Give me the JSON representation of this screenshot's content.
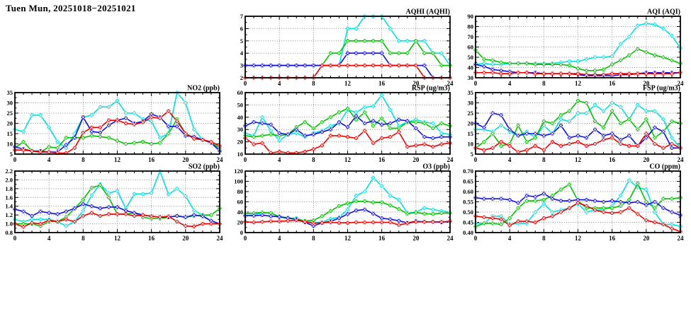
{
  "page_title": "Tuen Mun, 20251018−20251021",
  "colors": {
    "cyan": "#00dfe0",
    "green": "#00c000",
    "blue": "#1010dd",
    "red": "#e80000",
    "grid": "#888888",
    "axis": "#000000",
    "text": "#000000",
    "background": "#ffffff"
  },
  "series_order": [
    "cyan",
    "green",
    "blue",
    "red"
  ],
  "x_axis": {
    "min": 0,
    "max": 24,
    "major_step": 4,
    "minor_step": 1,
    "xticks": [
      0,
      4,
      8,
      12,
      16,
      20,
      24
    ]
  },
  "chart_data": [
    {
      "id": "aqhi",
      "type": "line",
      "title": "AQHI (AQHI)",
      "grid_col": 1,
      "grid_row": 0,
      "ylim": [
        2,
        7
      ],
      "yticks": [
        2,
        3,
        4,
        5,
        6,
        7
      ],
      "ydecimals": 0,
      "series": {
        "cyan": [
          3,
          3,
          3,
          3,
          3,
          3,
          3,
          3,
          3,
          3,
          3,
          3,
          6,
          6,
          7,
          7,
          7,
          6,
          5,
          5,
          5,
          5,
          4,
          4,
          3
        ],
        "green": [
          3,
          3,
          3,
          3,
          3,
          3,
          3,
          3,
          3,
          3,
          4,
          4,
          5,
          5,
          5,
          5,
          5,
          4,
          4,
          4,
          5,
          4,
          4,
          3,
          3
        ],
        "blue": [
          3,
          3,
          3,
          3,
          3,
          3,
          3,
          3,
          3,
          3,
          3,
          3,
          4,
          4,
          4,
          4,
          4,
          3,
          3,
          3,
          3,
          3,
          2,
          2,
          2
        ],
        "red": [
          2,
          2,
          2,
          2,
          2,
          2,
          2,
          2,
          2,
          3,
          3,
          3,
          3,
          3,
          3,
          3,
          3,
          3,
          3,
          3,
          3,
          2,
          2,
          2,
          2
        ]
      }
    },
    {
      "id": "aqi",
      "type": "line",
      "title": "AQI (AQI)",
      "grid_col": 2,
      "grid_row": 0,
      "ylim": [
        30,
        90
      ],
      "yticks": [
        30,
        40,
        50,
        60,
        70,
        80,
        90
      ],
      "ydecimals": 0,
      "series": {
        "cyan": [
          43,
          44,
          43,
          43,
          44,
          44,
          44,
          44,
          44,
          44,
          45,
          46,
          46,
          48,
          50,
          50,
          51,
          63,
          70,
          81,
          83,
          82,
          78,
          71,
          59
        ],
        "green": [
          57,
          48,
          47,
          45,
          44,
          44,
          44,
          43,
          43,
          43,
          43,
          42,
          39,
          37,
          37,
          38,
          43,
          47,
          52,
          58,
          55,
          52,
          50,
          47,
          44
        ],
        "blue": [
          43,
          41,
          38,
          37,
          36,
          35,
          35,
          35,
          34,
          34,
          34,
          34,
          33,
          32,
          32,
          32,
          32,
          33,
          33,
          34,
          35,
          35,
          35,
          35,
          35
        ],
        "red": [
          35,
          35,
          35,
          34,
          34,
          35,
          35,
          34,
          34,
          34,
          34,
          34,
          34,
          33,
          33,
          33,
          34,
          34,
          34,
          34,
          34,
          34,
          34,
          34,
          35
        ]
      }
    },
    {
      "id": "no2",
      "type": "line",
      "title": "NO2 (ppb)",
      "grid_col": 0,
      "grid_row": 1,
      "ylim": [
        5,
        35
      ],
      "yticks": [
        5,
        10,
        15,
        20,
        25,
        30,
        35
      ],
      "ydecimals": 0,
      "series": {
        "cyan": [
          17,
          16,
          24,
          24,
          18,
          11,
          8,
          15,
          23,
          24,
          28,
          28,
          31,
          25,
          25,
          22,
          21,
          13,
          15,
          35,
          30,
          17,
          12,
          11,
          7
        ],
        "green": [
          8,
          11,
          6.5,
          6,
          8.5,
          8,
          13,
          13,
          13,
          14,
          13.5,
          13,
          11.5,
          10,
          10.5,
          11,
          10,
          10.5,
          15,
          22,
          15,
          13,
          12,
          10.5,
          8
        ],
        "blue": [
          8.5,
          7.5,
          6.5,
          6.5,
          6,
          6,
          9.5,
          13,
          23,
          16,
          15.5,
          19,
          21.5,
          22.5,
          20,
          21,
          24.5,
          23,
          18.5,
          18.5,
          14,
          13.5,
          12,
          10.5,
          6.5
        ],
        "red": [
          7,
          7,
          6.5,
          6,
          6,
          5.5,
          5.5,
          8,
          15.5,
          18,
          18,
          21.5,
          21.5,
          20,
          19.5,
          20.5,
          23,
          22.5,
          26,
          21,
          15,
          12.5,
          12,
          11,
          9
        ]
      }
    },
    {
      "id": "rsp",
      "type": "line",
      "title": "RSP (ug/m3)",
      "grid_col": 1,
      "grid_row": 1,
      "ylim": [
        10,
        60
      ],
      "yticks": [
        10,
        20,
        30,
        40,
        50,
        60
      ],
      "ydecimals": 0,
      "series": {
        "cyan": [
          27,
          25,
          40,
          29,
          21,
          26,
          27,
          24,
          27,
          29,
          33,
          35,
          46,
          44,
          48,
          49,
          58,
          46,
          33,
          36,
          38,
          36,
          35,
          27,
          26
        ],
        "green": [
          25,
          24,
          25,
          26,
          25,
          26,
          32,
          36,
          31,
          36,
          40,
          44,
          47,
          38,
          44,
          33,
          39,
          31,
          31,
          36,
          36,
          35,
          31,
          35,
          33
        ],
        "blue": [
          33,
          36,
          35,
          34,
          27,
          26,
          30,
          25,
          26,
          28,
          30,
          36,
          32,
          41,
          35,
          37,
          34,
          35,
          38,
          37,
          31,
          24,
          23,
          24,
          24
        ],
        "red": [
          23,
          18,
          19,
          11,
          12,
          11,
          11,
          12,
          14,
          17,
          25,
          25,
          24,
          23,
          29,
          19,
          23,
          24,
          28,
          16,
          17,
          18,
          16,
          18,
          19
        ]
      }
    },
    {
      "id": "fsp",
      "type": "line",
      "title": "FSP (ug/m3)",
      "grid_col": 2,
      "grid_row": 1,
      "ylim": [
        5,
        35
      ],
      "yticks": [
        5,
        10,
        15,
        20,
        25,
        30,
        35
      ],
      "ydecimals": 0,
      "series": {
        "cyan": [
          17,
          17,
          16,
          19,
          16,
          14,
          16,
          13,
          19,
          15,
          22,
          21,
          25,
          25,
          29,
          26,
          30,
          28,
          22,
          29,
          26,
          26,
          22,
          13,
          8
        ],
        "green": [
          8,
          11,
          15,
          9,
          10,
          19,
          11,
          13,
          21,
          20,
          24,
          26,
          31,
          30,
          21,
          18,
          26,
          20,
          22,
          17,
          22,
          13,
          16,
          21,
          20
        ],
        "blue": [
          20,
          18,
          25,
          24,
          17,
          14,
          15,
          15,
          14,
          15,
          19,
          13,
          14,
          13,
          17,
          14,
          15,
          12,
          14,
          9,
          13,
          18,
          16,
          8,
          8
        ],
        "red": [
          8,
          7,
          8,
          11,
          9,
          6,
          7,
          9,
          7,
          11,
          9,
          10,
          11,
          9,
          10,
          12,
          13,
          10,
          9,
          9,
          15,
          10,
          8,
          10,
          8
        ]
      }
    },
    {
      "id": "so2",
      "type": "line",
      "title": "SO2 (ppb)",
      "grid_col": 0,
      "grid_row": 2,
      "ylim": [
        0.8,
        2.2
      ],
      "yticks": [
        0.8,
        1.0,
        1.2,
        1.4,
        1.6,
        1.8,
        2.0,
        2.2
      ],
      "ydecimals": 1,
      "series": {
        "cyan": [
          1.1,
          1.05,
          1.1,
          1.1,
          1.1,
          1.05,
          0.95,
          1.05,
          1.3,
          1.65,
          1.9,
          1.7,
          1.75,
          1.35,
          1.68,
          1.68,
          1.7,
          2.2,
          1.67,
          1.8,
          1.63,
          1.3,
          1.2,
          1.05,
          1.0
        ],
        "green": [
          1.0,
          1.0,
          1.0,
          0.95,
          1.05,
          1.05,
          1.15,
          1.35,
          1.55,
          1.82,
          1.88,
          1.6,
          1.22,
          1.22,
          1.25,
          1.15,
          1.12,
          1.12,
          1.15,
          1.18,
          1.15,
          1.18,
          1.2,
          1.2,
          1.35
        ],
        "blue": [
          1.33,
          1.28,
          1.18,
          1.28,
          1.25,
          1.22,
          1.28,
          1.35,
          1.45,
          1.4,
          1.35,
          1.38,
          1.38,
          1.3,
          1.25,
          1.2,
          1.17,
          1.15,
          1.15,
          1.18,
          1.15,
          1.2,
          1.17,
          1.07,
          1.0
        ],
        "red": [
          1.0,
          0.93,
          1.02,
          1.0,
          1.08,
          1.05,
          1.1,
          1.05,
          1.18,
          1.25,
          1.18,
          1.22,
          1.22,
          1.22,
          1.18,
          1.2,
          1.17,
          1.15,
          1.17,
          1.05,
          0.95,
          0.94,
          1.0,
          1.0,
          1.0
        ]
      }
    },
    {
      "id": "o3",
      "type": "line",
      "title": "O3 (ppb)",
      "grid_col": 1,
      "grid_row": 2,
      "ylim": [
        0,
        120
      ],
      "yticks": [
        0,
        20,
        40,
        60,
        80,
        100,
        120
      ],
      "ydecimals": 0,
      "series": {
        "cyan": [
          33,
          35,
          38,
          38,
          30,
          28,
          28,
          22,
          20,
          20,
          27,
          30,
          45,
          72,
          80,
          107,
          91,
          72,
          64,
          38,
          40,
          48,
          45,
          42,
          40
        ],
        "green": [
          37,
          38,
          39,
          38,
          31,
          29,
          26,
          23,
          24,
          32,
          42,
          52,
          57,
          61,
          61,
          59,
          59,
          53,
          46,
          37,
          39,
          37,
          36,
          38,
          38
        ],
        "blue": [
          33,
          33,
          34,
          32,
          31,
          28,
          26,
          20,
          13,
          19,
          22,
          28,
          36,
          43,
          45,
          37,
          28,
          26,
          23,
          19,
          22,
          21,
          21,
          20,
          22
        ],
        "red": [
          21,
          20,
          21,
          22,
          22,
          23,
          24,
          21,
          18,
          19,
          20,
          19,
          19,
          20,
          20,
          20,
          20,
          20,
          15,
          18,
          21,
          21,
          21,
          21,
          22
        ]
      }
    },
    {
      "id": "co",
      "type": "line",
      "title": "CO (ppm)",
      "grid_col": 2,
      "grid_row": 2,
      "ylim": [
        0.4,
        0.7
      ],
      "yticks": [
        0.4,
        0.45,
        0.5,
        0.55,
        0.6,
        0.65,
        0.7
      ],
      "ydecimals": 2,
      "series": {
        "cyan": [
          0.445,
          0.445,
          0.48,
          0.48,
          0.44,
          0.445,
          0.445,
          0.5,
          0.54,
          0.5,
          0.51,
          0.52,
          0.54,
          0.5,
          0.51,
          0.51,
          0.53,
          0.58,
          0.655,
          0.62,
          0.61,
          0.5,
          0.44,
          0.44,
          0.43
        ],
        "green": [
          0.43,
          0.445,
          0.445,
          0.44,
          0.47,
          0.52,
          0.555,
          0.555,
          0.56,
          0.58,
          0.61,
          0.635,
          0.555,
          0.52,
          0.52,
          0.52,
          0.52,
          0.53,
          0.56,
          0.64,
          0.55,
          0.52,
          0.565,
          0.565,
          0.57
        ],
        "blue": [
          0.57,
          0.565,
          0.565,
          0.565,
          0.56,
          0.545,
          0.58,
          0.575,
          0.59,
          0.565,
          0.555,
          0.555,
          0.56,
          0.56,
          0.555,
          0.55,
          0.555,
          0.55,
          0.545,
          0.55,
          0.535,
          0.55,
          0.52,
          0.5,
          0.485
        ],
        "red": [
          0.48,
          0.475,
          0.47,
          0.465,
          0.435,
          0.455,
          0.455,
          0.45,
          0.47,
          0.48,
          0.5,
          0.52,
          0.545,
          0.53,
          0.51,
          0.5,
          0.495,
          0.5,
          0.52,
          0.49,
          0.46,
          0.45,
          0.44,
          0.42,
          0.405
        ]
      }
    }
  ]
}
